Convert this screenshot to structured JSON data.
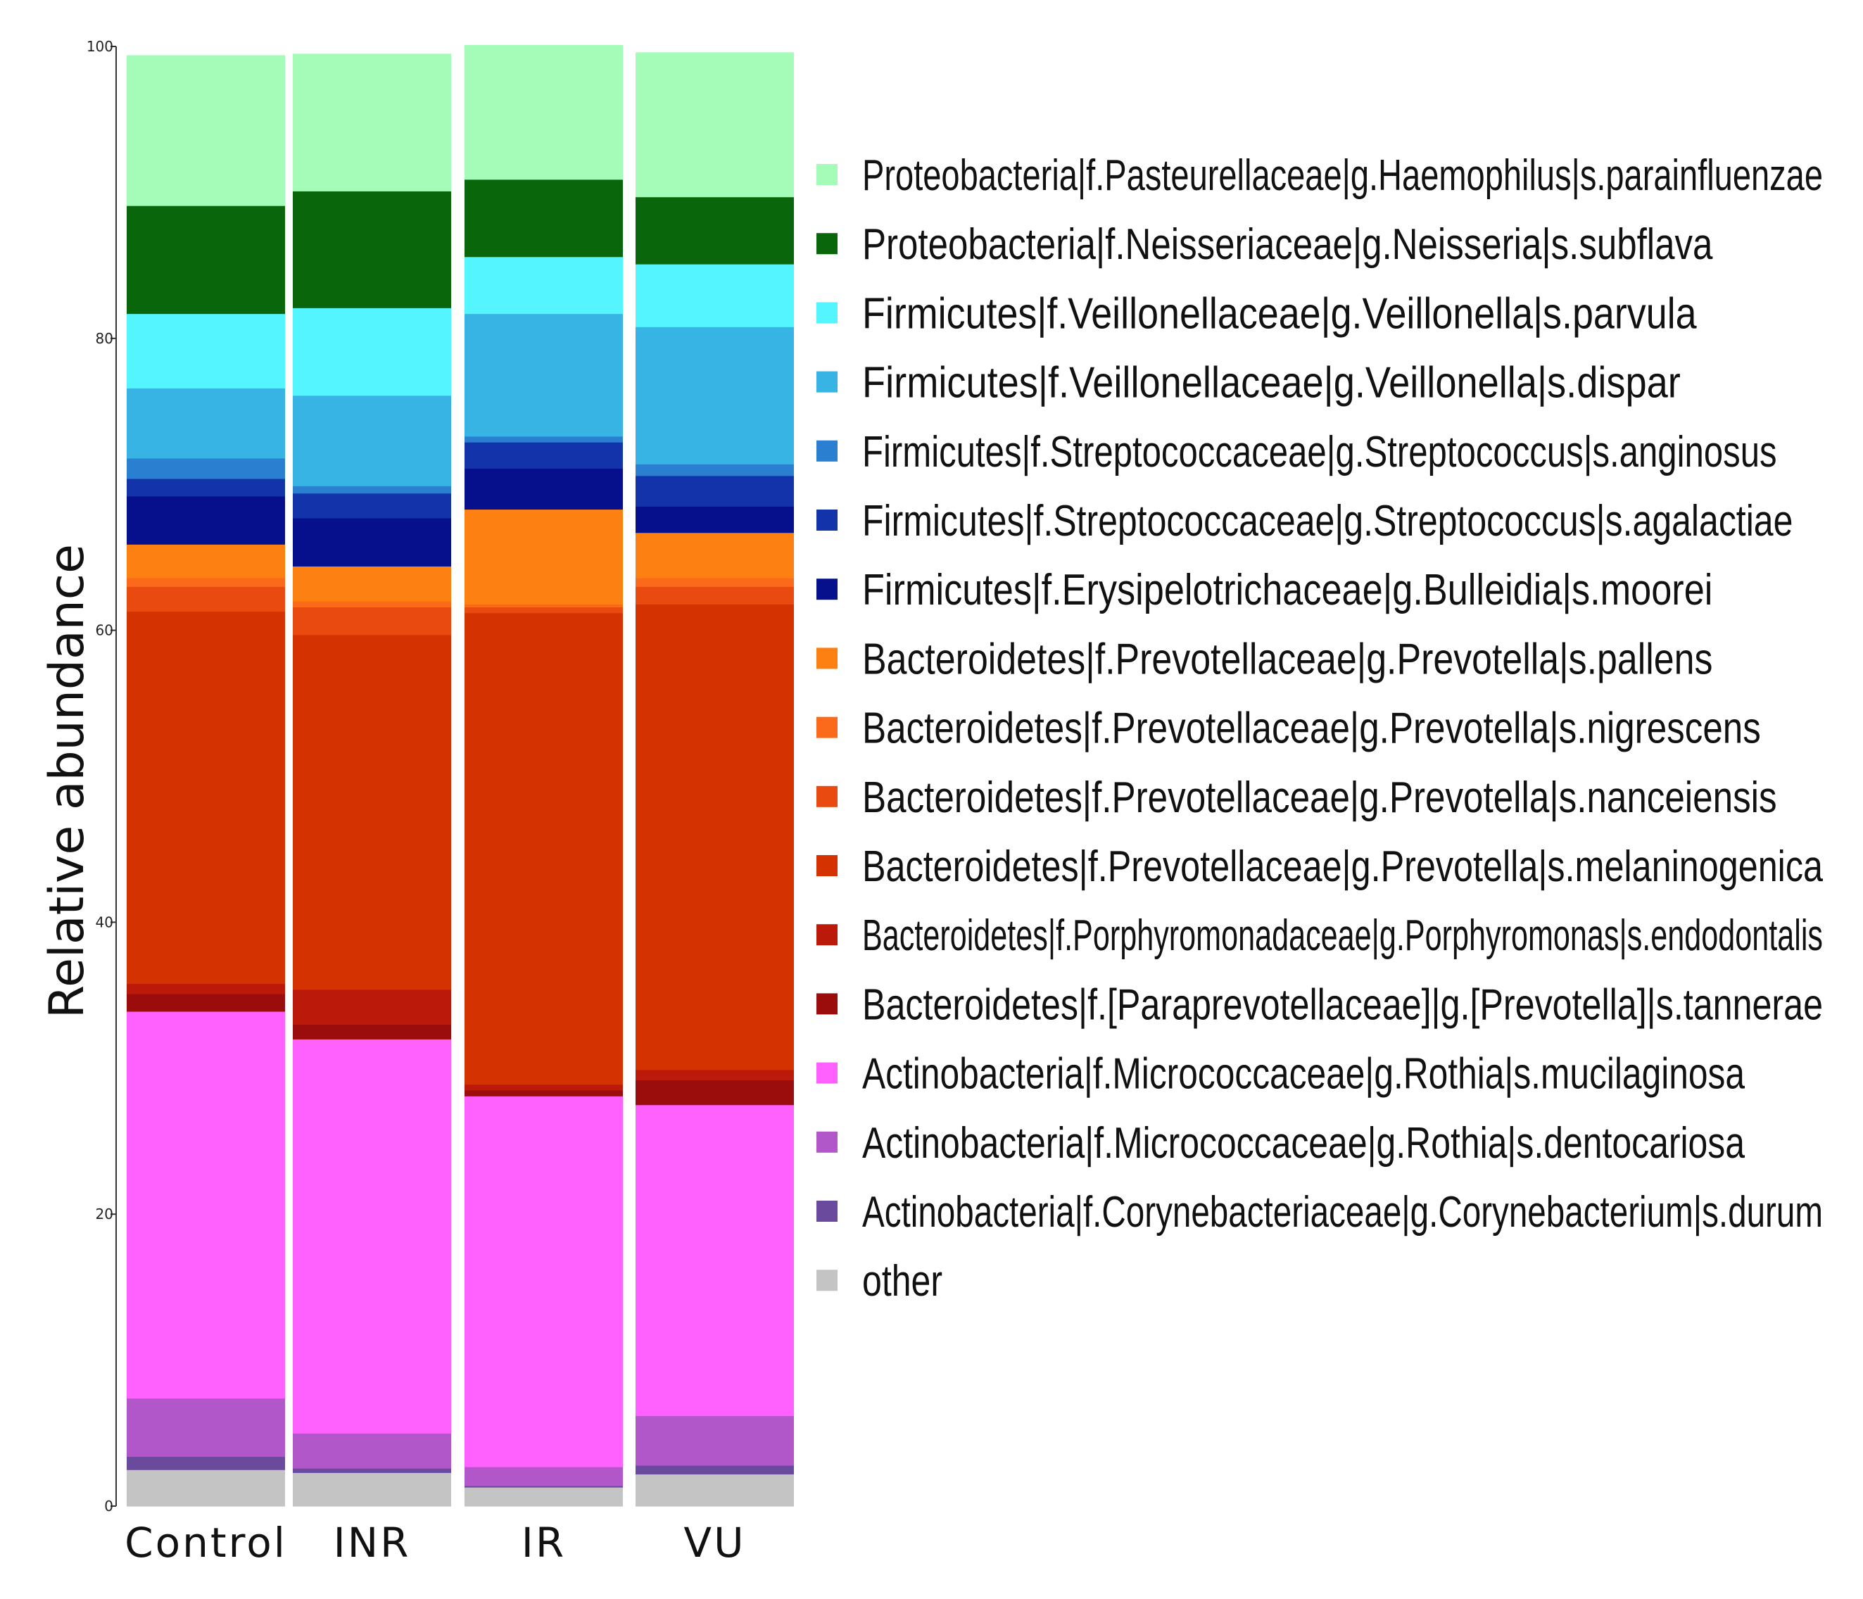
{
  "chart_data": {
    "type": "bar",
    "stacked": true,
    "title": "",
    "xlabel": "",
    "ylabel": "Relative abundance",
    "ylim": [
      0,
      100
    ],
    "yticks": [
      "0",
      "20",
      "40",
      "60",
      "80",
      "100"
    ],
    "categories": [
      "Control",
      "INR",
      "IR",
      "VU"
    ],
    "legend_position": "right",
    "series": [
      {
        "name": "other",
        "color": "#c4c4c4",
        "values": [
          2.5,
          2.3,
          1.3,
          2.2
        ]
      },
      {
        "name": "Actinobacteria|f.Corynebacteriaceae|g.Corynebacterium|s.durum",
        "color": "#6a4a9c",
        "values": [
          0.9,
          0.3,
          0.1,
          0.6
        ]
      },
      {
        "name": "Actinobacteria|f.Micrococcaceae|g.Rothia|s.dentocariosa",
        "color": "#b257c9",
        "values": [
          4.0,
          2.4,
          1.3,
          3.4
        ]
      },
      {
        "name": "Actinobacteria|f.Micrococcaceae|g.Rothia|s.mucilaginosa",
        "color": "#ff61ff",
        "values": [
          26.5,
          27.0,
          25.4,
          21.3
        ]
      },
      {
        "name": "Bacteroidetes|f.[Paraprevotellaceae]|g.[Prevotella]|s.tannerae",
        "color": "#9b0c0c",
        "values": [
          1.2,
          1.0,
          0.4,
          1.7
        ]
      },
      {
        "name": "Bacteroidetes|f.Porphyromonadaceae|g.Porphyromonas|s.endodontalis",
        "color": "#bb1a0a",
        "values": [
          0.7,
          2.4,
          0.4,
          0.7
        ]
      },
      {
        "name": "Bacteroidetes|f.Prevotellaceae|g.Prevotella|s.melaninogenica",
        "color": "#d43200",
        "values": [
          25.5,
          24.3,
          32.3,
          31.9
        ]
      },
      {
        "name": "Bacteroidetes|f.Prevotellaceae|g.Prevotella|s.nanceiensis",
        "color": "#e84a10",
        "values": [
          1.7,
          1.9,
          0.4,
          1.2
        ]
      },
      {
        "name": "Bacteroidetes|f.Prevotellaceae|g.Prevotella|s.nigrescens",
        "color": "#fa6a1a",
        "values": [
          0.6,
          0.4,
          0.2,
          0.6
        ]
      },
      {
        "name": "Bacteroidetes|f.Prevotellaceae|g.Prevotella|s.pallens",
        "color": "#fd8112",
        "values": [
          2.3,
          2.4,
          6.5,
          3.1
        ]
      },
      {
        "name": "Firmicutes|f.Erysipelotrichaceae|g.Bulleidia|s.moorei",
        "color": "#06108c",
        "values": [
          3.3,
          3.3,
          2.8,
          1.8
        ]
      },
      {
        "name": "Firmicutes|f.Streptococcaceae|g.Streptococcus|s.agalactiae",
        "color": "#1233aa",
        "values": [
          1.2,
          1.7,
          1.8,
          2.1
        ]
      },
      {
        "name": "Firmicutes|f.Streptococcaceae|g.Streptococcus|s.anginosus",
        "color": "#2a7fd0",
        "values": [
          1.4,
          0.5,
          0.4,
          0.8
        ]
      },
      {
        "name": "Firmicutes|f.Veillonellaceae|g.Veillonella|s.dispar",
        "color": "#38b4e4",
        "values": [
          4.8,
          6.2,
          8.4,
          9.4
        ]
      },
      {
        "name": "Firmicutes|f.Veillonellaceae|g.Veillonella|s.parvula",
        "color": "#55f5ff",
        "values": [
          5.1,
          6.0,
          3.9,
          4.3
        ]
      },
      {
        "name": "Proteobacteria|f.Neisseriaceae|g.Neisseria|s.subflava",
        "color": "#0a660a",
        "values": [
          7.4,
          8.0,
          5.3,
          4.6
        ]
      },
      {
        "name": "Proteobacteria|f.Pasteurellaceae|g.Haemophilus|s.parainfluenzae",
        "color": "#a5fcb9",
        "values": [
          10.3,
          9.4,
          9.2,
          9.9
        ]
      }
    ],
    "legend_order": [
      "Proteobacteria|f.Pasteurellaceae|g.Haemophilus|s.parainfluenzae",
      "Proteobacteria|f.Neisseriaceae|g.Neisseria|s.subflava",
      "Firmicutes|f.Veillonellaceae|g.Veillonella|s.parvula",
      "Firmicutes|f.Veillonellaceae|g.Veillonella|s.dispar",
      "Firmicutes|f.Streptococcaceae|g.Streptococcus|s.anginosus",
      "Firmicutes|f.Streptococcaceae|g.Streptococcus|s.agalactiae",
      "Firmicutes|f.Erysipelotrichaceae|g.Bulleidia|s.moorei",
      "Bacteroidetes|f.Prevotellaceae|g.Prevotella|s.pallens",
      "Bacteroidetes|f.Prevotellaceae|g.Prevotella|s.nigrescens",
      "Bacteroidetes|f.Prevotellaceae|g.Prevotella|s.nanceiensis",
      "Bacteroidetes|f.Prevotellaceae|g.Prevotella|s.melaninogenica",
      "Bacteroidetes|f.Porphyromonadaceae|g.Porphyromonas|s.endodontalis",
      "Bacteroidetes|f.[Paraprevotellaceae]|g.[Prevotella]|s.tannerae",
      "Actinobacteria|f.Micrococcaceae|g.Rothia|s.mucilaginosa",
      "Actinobacteria|f.Micrococcaceae|g.Rothia|s.dentocariosa",
      "Actinobacteria|f.Corynebacteriaceae|g.Corynebacterium|s.durum",
      "other"
    ]
  }
}
